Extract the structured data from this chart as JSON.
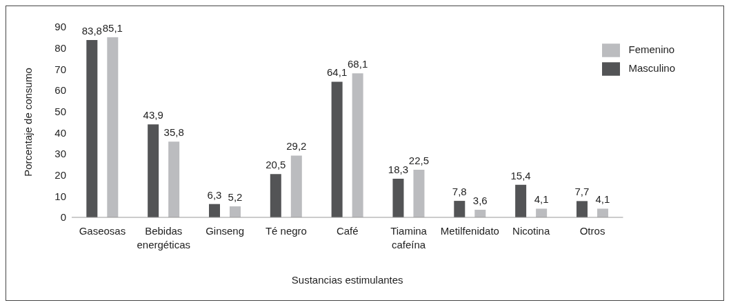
{
  "chart_data": {
    "type": "bar",
    "xlabel": "Sustancias estimulantes",
    "ylabel": "Porcentaje de consumo",
    "categories": [
      "Gaseosas",
      "Bebidas energéticas",
      "Ginseng",
      "Té negro",
      "Café",
      "Tiamina cafeína",
      "Metilfenidato",
      "Nicotina",
      "Otros"
    ],
    "series": [
      {
        "name": "Masculino",
        "color": "#535456",
        "values": [
          83.8,
          43.9,
          6.3,
          20.5,
          64.1,
          18.3,
          7.8,
          15.4,
          7.7
        ],
        "value_labels": [
          "83,8",
          "43,9",
          "6,3",
          "20,5",
          "64,1",
          "18,3",
          "7,8",
          "15,4",
          "7,7"
        ]
      },
      {
        "name": "Femenino",
        "color": "#bbbcbf",
        "values": [
          85.1,
          35.8,
          5.2,
          29.2,
          68.1,
          22.5,
          3.6,
          4.1,
          4.1
        ],
        "value_labels": [
          "85,1",
          "35,8",
          "5,2",
          "29,2",
          "68,1",
          "22,5",
          "3,6",
          "4,1",
          "4,1"
        ]
      }
    ],
    "ylim": [
      0,
      90
    ],
    "yticks": [
      0,
      10,
      20,
      30,
      40,
      50,
      60,
      70,
      80,
      90
    ],
    "grid": false,
    "legend": "top right"
  }
}
